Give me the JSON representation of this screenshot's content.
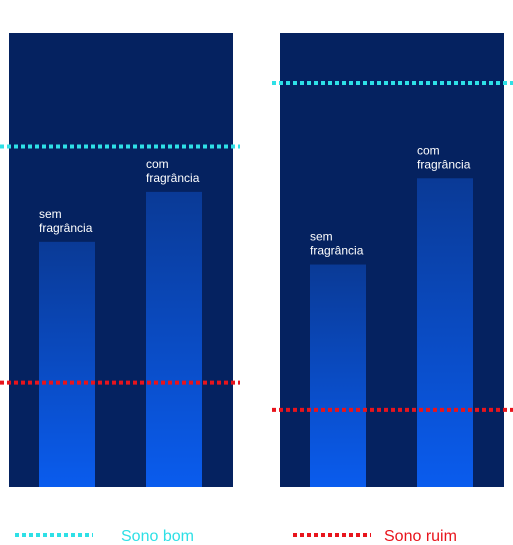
{
  "colors": {
    "panel": "#052260",
    "bar_top": "#0a3a96",
    "bar_bottom": "#0a5cee",
    "good_sleep": "#2ee0e6",
    "bad_sleep": "#e8141c",
    "bar_label": "#ffffff"
  },
  "legend": {
    "position": "bottom",
    "items": [
      {
        "key": "good",
        "label": "Sono bom",
        "color": "#2ee0e6"
      },
      {
        "key": "bad",
        "label": "Sono ruim",
        "color": "#e8141c"
      }
    ]
  },
  "chart_data": [
    {
      "type": "bar",
      "categories": [
        "sem fragrância",
        "com fragrância"
      ],
      "category_lines": [
        [
          "sem",
          "fragrância"
        ],
        [
          "com",
          "fragrância"
        ]
      ],
      "values": [
        54,
        65
      ],
      "ylim": [
        0,
        100
      ],
      "reference_lines": [
        {
          "key": "good",
          "label": "Sono bom",
          "value": 75
        },
        {
          "key": "bad",
          "label": "Sono ruim",
          "value": 23
        }
      ],
      "title": "",
      "xlabel": "",
      "ylabel": "",
      "grid": false
    },
    {
      "type": "bar",
      "categories": [
        "sem fragrância",
        "com fragrância"
      ],
      "category_lines": [
        [
          "sem",
          "fragrância"
        ],
        [
          "com",
          "fragrância"
        ]
      ],
      "values": [
        49,
        68
      ],
      "ylim": [
        0,
        100
      ],
      "reference_lines": [
        {
          "key": "good",
          "label": "Sono bom",
          "value": 89
        },
        {
          "key": "bad",
          "label": "Sono ruim",
          "value": 17
        }
      ],
      "title": "",
      "xlabel": "",
      "ylabel": "",
      "grid": false
    }
  ]
}
